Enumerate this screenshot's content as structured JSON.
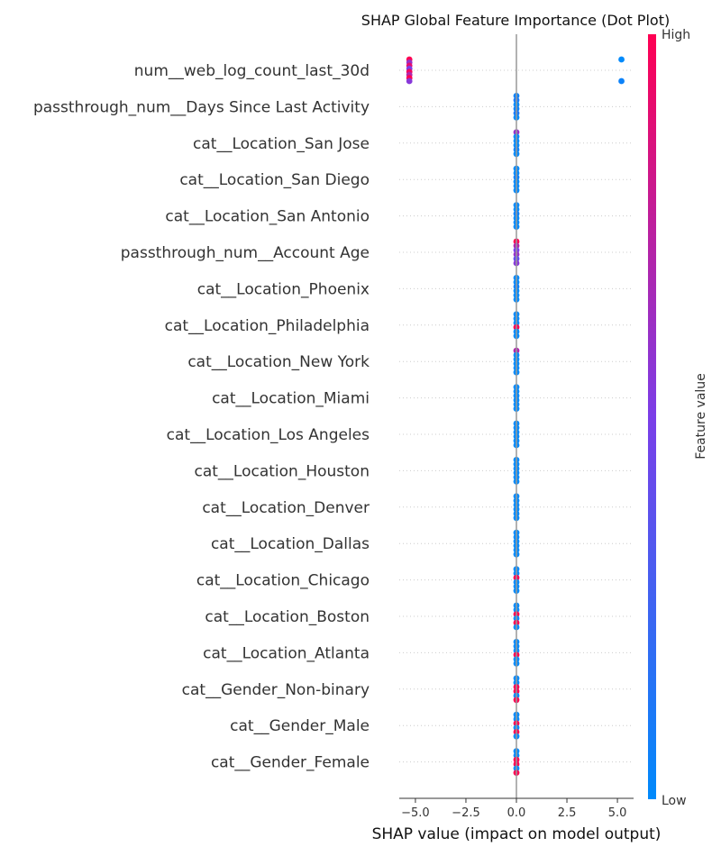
{
  "chart_data": {
    "type": "scatter",
    "title": "SHAP Global Feature Importance (Dot Plot)",
    "xlabel": "SHAP value (impact on model output)",
    "xlim": [
      -5.8,
      5.8
    ],
    "xticks": [
      -5.0,
      -2.5,
      0.0,
      2.5,
      5.0
    ],
    "xtick_labels": [
      "−5.0",
      "−2.5",
      "0.0",
      "2.5",
      "5.0"
    ],
    "zero_line": true,
    "features": [
      {
        "name": "num__web_log_count_last_30d",
        "points": [
          {
            "x": -5.3,
            "v": 1.0
          },
          {
            "x": -5.3,
            "v": 0.6
          },
          {
            "x": -5.3,
            "v": 0.9
          },
          {
            "x": -5.3,
            "v": 0.5
          },
          {
            "x": -5.3,
            "v": 0.95
          },
          {
            "x": -5.3,
            "v": 0.7
          },
          {
            "x": -5.3,
            "v": 1.0
          },
          {
            "x": -5.3,
            "v": 0.55
          },
          {
            "x": 5.2,
            "v": 0.0
          },
          {
            "x": 5.2,
            "v": 0.05
          }
        ]
      },
      {
        "name": "passthrough_num__Days Since Last Activity",
        "points": [
          {
            "x": 0.0,
            "v": 0.05
          },
          {
            "x": 0.0,
            "v": 0.1
          },
          {
            "x": 0.0,
            "v": 0.0
          },
          {
            "x": 0.0,
            "v": 0.05
          },
          {
            "x": 0.0,
            "v": 0.1
          },
          {
            "x": 0.0,
            "v": 0.0
          }
        ]
      },
      {
        "name": "cat__Location_San Jose",
        "points": [
          {
            "x": 0.0,
            "v": 0.6
          },
          {
            "x": 0.0,
            "v": 0.0
          },
          {
            "x": 0.0,
            "v": 0.0
          },
          {
            "x": 0.0,
            "v": 0.0
          },
          {
            "x": 0.0,
            "v": 0.05
          },
          {
            "x": 0.0,
            "v": 0.0
          }
        ]
      },
      {
        "name": "cat__Location_San Diego",
        "points": [
          {
            "x": 0.0,
            "v": 0.0
          },
          {
            "x": 0.0,
            "v": 0.0
          },
          {
            "x": 0.0,
            "v": 0.05
          },
          {
            "x": 0.0,
            "v": 0.0
          },
          {
            "x": 0.0,
            "v": 0.0
          },
          {
            "x": 0.0,
            "v": 0.0
          }
        ]
      },
      {
        "name": "cat__Location_San Antonio",
        "points": [
          {
            "x": 0.0,
            "v": 0.0
          },
          {
            "x": 0.0,
            "v": 0.0
          },
          {
            "x": 0.0,
            "v": 0.05
          },
          {
            "x": 0.0,
            "v": 0.0
          },
          {
            "x": 0.0,
            "v": 0.0
          },
          {
            "x": 0.0,
            "v": 0.0
          }
        ]
      },
      {
        "name": "passthrough_num__Account Age",
        "points": [
          {
            "x": 0.0,
            "v": 1.0
          },
          {
            "x": 0.0,
            "v": 0.7
          },
          {
            "x": 0.0,
            "v": 0.5
          },
          {
            "x": 0.0,
            "v": 0.6
          },
          {
            "x": 0.0,
            "v": 0.4
          },
          {
            "x": 0.0,
            "v": 0.55
          }
        ]
      },
      {
        "name": "cat__Location_Phoenix",
        "points": [
          {
            "x": 0.0,
            "v": 0.0
          },
          {
            "x": 0.0,
            "v": 0.0
          },
          {
            "x": 0.0,
            "v": 0.05
          },
          {
            "x": 0.0,
            "v": 0.0
          },
          {
            "x": 0.0,
            "v": 0.0
          },
          {
            "x": 0.0,
            "v": 0.0
          }
        ]
      },
      {
        "name": "cat__Location_Philadelphia",
        "points": [
          {
            "x": 0.0,
            "v": 0.0
          },
          {
            "x": 0.0,
            "v": 0.0
          },
          {
            "x": 0.0,
            "v": 0.0
          },
          {
            "x": 0.0,
            "v": 1.0
          },
          {
            "x": 0.0,
            "v": 0.0
          },
          {
            "x": 0.0,
            "v": 0.0
          }
        ]
      },
      {
        "name": "cat__Location_New York",
        "points": [
          {
            "x": 0.0,
            "v": 0.7
          },
          {
            "x": 0.0,
            "v": 0.0
          },
          {
            "x": 0.0,
            "v": 0.0
          },
          {
            "x": 0.0,
            "v": 0.0
          },
          {
            "x": 0.0,
            "v": 0.0
          },
          {
            "x": 0.0,
            "v": 0.0
          }
        ]
      },
      {
        "name": "cat__Location_Miami",
        "points": [
          {
            "x": 0.0,
            "v": 0.0
          },
          {
            "x": 0.0,
            "v": 0.0
          },
          {
            "x": 0.0,
            "v": 0.0
          },
          {
            "x": 0.0,
            "v": 0.0
          },
          {
            "x": 0.0,
            "v": 0.0
          },
          {
            "x": 0.0,
            "v": 0.0
          }
        ]
      },
      {
        "name": "cat__Location_Los Angeles",
        "points": [
          {
            "x": 0.0,
            "v": 0.0
          },
          {
            "x": 0.0,
            "v": 0.0
          },
          {
            "x": 0.0,
            "v": 0.0
          },
          {
            "x": 0.0,
            "v": 0.0
          },
          {
            "x": 0.0,
            "v": 0.0
          },
          {
            "x": 0.0,
            "v": 0.0
          }
        ]
      },
      {
        "name": "cat__Location_Houston",
        "points": [
          {
            "x": 0.0,
            "v": 0.0
          },
          {
            "x": 0.0,
            "v": 0.0
          },
          {
            "x": 0.0,
            "v": 0.0
          },
          {
            "x": 0.0,
            "v": 0.0
          },
          {
            "x": 0.0,
            "v": 0.0
          },
          {
            "x": 0.0,
            "v": 0.0
          }
        ]
      },
      {
        "name": "cat__Location_Denver",
        "points": [
          {
            "x": 0.0,
            "v": 0.0
          },
          {
            "x": 0.0,
            "v": 0.0
          },
          {
            "x": 0.0,
            "v": 0.0
          },
          {
            "x": 0.0,
            "v": 0.0
          },
          {
            "x": 0.0,
            "v": 0.0
          },
          {
            "x": 0.0,
            "v": 0.0
          }
        ]
      },
      {
        "name": "cat__Location_Dallas",
        "points": [
          {
            "x": 0.0,
            "v": 0.0
          },
          {
            "x": 0.0,
            "v": 0.0
          },
          {
            "x": 0.0,
            "v": 0.0
          },
          {
            "x": 0.0,
            "v": 0.0
          },
          {
            "x": 0.0,
            "v": 0.0
          },
          {
            "x": 0.0,
            "v": 0.0
          }
        ]
      },
      {
        "name": "cat__Location_Chicago",
        "points": [
          {
            "x": 0.0,
            "v": 0.0
          },
          {
            "x": 0.0,
            "v": 0.0
          },
          {
            "x": 0.0,
            "v": 1.0
          },
          {
            "x": 0.0,
            "v": 0.0
          },
          {
            "x": 0.0,
            "v": 0.0
          },
          {
            "x": 0.0,
            "v": 0.0
          }
        ]
      },
      {
        "name": "cat__Location_Boston",
        "points": [
          {
            "x": 0.0,
            "v": 0.0
          },
          {
            "x": 0.0,
            "v": 0.0
          },
          {
            "x": 0.0,
            "v": 1.0
          },
          {
            "x": 0.0,
            "v": 0.0
          },
          {
            "x": 0.0,
            "v": 1.0
          },
          {
            "x": 0.0,
            "v": 0.0
          }
        ]
      },
      {
        "name": "cat__Location_Atlanta",
        "points": [
          {
            "x": 0.0,
            "v": 0.0
          },
          {
            "x": 0.0,
            "v": 0.0
          },
          {
            "x": 0.0,
            "v": 0.0
          },
          {
            "x": 0.0,
            "v": 1.0
          },
          {
            "x": 0.0,
            "v": 0.0
          },
          {
            "x": 0.0,
            "v": 0.0
          }
        ]
      },
      {
        "name": "cat__Gender_Non-binary",
        "points": [
          {
            "x": 0.0,
            "v": 0.0
          },
          {
            "x": 0.0,
            "v": 0.0
          },
          {
            "x": 0.0,
            "v": 1.0
          },
          {
            "x": 0.0,
            "v": 1.0
          },
          {
            "x": 0.0,
            "v": 0.0
          },
          {
            "x": 0.0,
            "v": 1.0
          }
        ]
      },
      {
        "name": "cat__Gender_Male",
        "points": [
          {
            "x": 0.0,
            "v": 0.0
          },
          {
            "x": 0.0,
            "v": 0.0
          },
          {
            "x": 0.0,
            "v": 1.0
          },
          {
            "x": 0.0,
            "v": 0.0
          },
          {
            "x": 0.0,
            "v": 1.0
          },
          {
            "x": 0.0,
            "v": 0.0
          }
        ]
      },
      {
        "name": "cat__Gender_Female",
        "points": [
          {
            "x": 0.0,
            "v": 0.0
          },
          {
            "x": 0.0,
            "v": 0.0
          },
          {
            "x": 0.0,
            "v": 1.0
          },
          {
            "x": 0.0,
            "v": 1.0
          },
          {
            "x": 0.0,
            "v": 0.0
          },
          {
            "x": 0.0,
            "v": 1.0
          }
        ]
      }
    ],
    "colorbar": {
      "label": "Feature value",
      "high_label": "High",
      "low_label": "Low",
      "color_low": "#008afb",
      "color_mid": "#7b3ee8",
      "color_high": "#ff0052"
    },
    "colors": {
      "axis": "#333333",
      "zero_line": "#999999",
      "row_grid": "#cccccc"
    }
  }
}
